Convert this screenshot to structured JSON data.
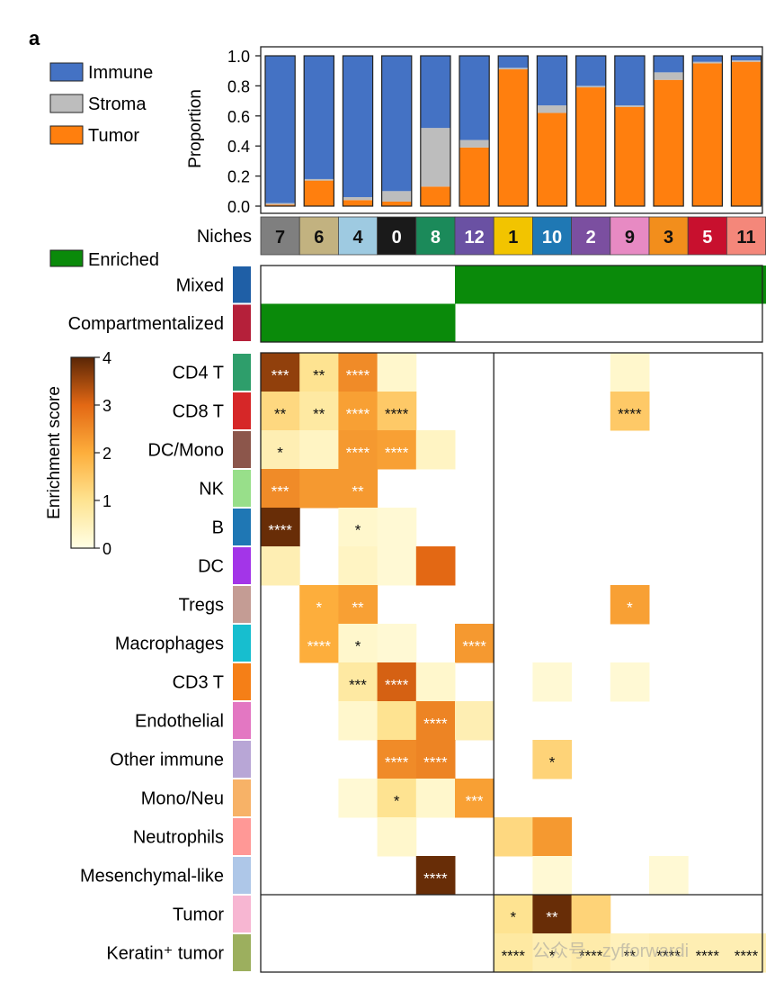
{
  "panel_label": "a",
  "chart_data": [
    {
      "type": "bar",
      "stacked": true,
      "ylabel": "Proportion",
      "ylim": [
        0,
        1
      ],
      "yticks": [
        "0.0",
        "0.2",
        "0.4",
        "0.6",
        "0.8",
        "1.0"
      ],
      "legend": {
        "placement": "top-left",
        "entries": [
          "Immune",
          "Stroma",
          "Tumor"
        ]
      },
      "categories": [
        "7",
        "6",
        "4",
        "0",
        "8",
        "12",
        "1",
        "10",
        "2",
        "9",
        "3",
        "5",
        "11"
      ],
      "series": [
        {
          "name": "Tumor",
          "color": "#ff7f0e",
          "values": [
            0.01,
            0.17,
            0.04,
            0.03,
            0.13,
            0.39,
            0.91,
            0.62,
            0.79,
            0.66,
            0.84,
            0.95,
            0.96
          ]
        },
        {
          "name": "Stroma",
          "color": "#bdbdbd",
          "values": [
            0.01,
            0.01,
            0.02,
            0.07,
            0.39,
            0.05,
            0.01,
            0.05,
            0.01,
            0.01,
            0.05,
            0.01,
            0.01
          ]
        },
        {
          "name": "Immune",
          "color": "#4472c4",
          "values": [
            0.98,
            0.82,
            0.94,
            0.9,
            0.48,
            0.56,
            0.08,
            0.33,
            0.2,
            0.33,
            0.11,
            0.04,
            0.03
          ]
        }
      ]
    },
    {
      "type": "heatmap",
      "x_label": "Niches",
      "niches": [
        "7",
        "6",
        "4",
        "0",
        "8",
        "12",
        "1",
        "10",
        "2",
        "9",
        "3",
        "5",
        "11"
      ],
      "niche_colors": [
        "#7f7f7f",
        "#c2b280",
        "#9ecae1",
        "#1a1a1a",
        "#1b8a5a",
        "#6a51a3",
        "#f2c400",
        "#1f78b4",
        "#7b4fa0",
        "#e78ac3",
        "#f28e1c",
        "#c8102e",
        "#f4877a"
      ],
      "niche_label_colors": [
        "#111111",
        "#111111",
        "#111111",
        "#ffffff",
        "#ffffff",
        "#ffffff",
        "#111111",
        "#ffffff",
        "#ffffff",
        "#111111",
        "#111111",
        "#ffffff",
        "#111111"
      ],
      "enriched_legend": {
        "label": "Enriched",
        "color": "#0a8a0a"
      },
      "groups": [
        {
          "name": "Mixed",
          "color": "#1f5fa6",
          "enriched": [
            0,
            0,
            0,
            0,
            0,
            1,
            1,
            1,
            1,
            1,
            1,
            1,
            1
          ]
        },
        {
          "name": "Compartmentalized",
          "color": "#b5203a",
          "enriched": [
            1,
            1,
            1,
            1,
            1,
            0,
            0,
            0,
            0,
            0,
            0,
            0,
            0
          ]
        }
      ],
      "colorbar": {
        "label": "Enrichment score",
        "min": 0,
        "max": 4,
        "ticks": [
          "0",
          "1",
          "2",
          "3",
          "4"
        ]
      },
      "rows": [
        {
          "label": "CD4 T",
          "color": "#2e9e6b",
          "scores": [
            3.6,
            1.0,
            2.5,
            0.3,
            0,
            0,
            0,
            0,
            0,
            0.3,
            0,
            0,
            0
          ],
          "stars": [
            "***",
            "**",
            "****",
            "",
            "",
            "",
            "",
            "",
            "",
            "",
            "",
            "",
            ""
          ]
        },
        {
          "label": "CD8 T",
          "color": "#d62728",
          "scores": [
            1.2,
            0.8,
            2.2,
            1.5,
            0,
            0,
            0,
            0,
            0,
            1.5,
            0,
            0,
            0
          ],
          "stars": [
            "**",
            "**",
            "****",
            "****",
            "",
            "",
            "",
            "",
            "",
            "****",
            "",
            "",
            ""
          ]
        },
        {
          "label": "DC/Mono",
          "color": "#8c564b",
          "scores": [
            0.6,
            0.4,
            2.3,
            2.2,
            0.4,
            0,
            0,
            0,
            0,
            0,
            0,
            0,
            0
          ],
          "stars": [
            "*",
            "",
            "****",
            "****",
            "",
            "",
            "",
            "",
            "",
            "",
            "",
            "",
            ""
          ]
        },
        {
          "label": "NK",
          "color": "#98df8a",
          "scores": [
            2.5,
            2.3,
            2.3,
            0,
            0,
            0,
            0,
            0,
            0,
            0,
            0,
            0,
            0
          ],
          "stars": [
            "***",
            "",
            "**",
            "",
            "",
            "",
            "",
            "",
            "",
            "",
            "",
            "",
            ""
          ]
        },
        {
          "label": "B",
          "color": "#1f77b4",
          "scores": [
            3.9,
            0,
            0.3,
            0.2,
            0,
            0,
            0,
            0,
            0,
            0,
            0,
            0,
            0
          ],
          "stars": [
            "****",
            "",
            "*",
            "",
            "",
            "",
            "",
            "",
            "",
            "",
            "",
            "",
            ""
          ]
        },
        {
          "label": "DC",
          "color": "#a335e8",
          "scores": [
            0.6,
            0,
            0.4,
            0.2,
            3.0,
            0,
            0,
            0,
            0,
            0,
            0,
            0,
            0
          ],
          "stars": [
            "",
            "",
            "",
            "",
            "",
            "",
            "",
            "",
            "",
            "",
            "",
            "",
            ""
          ]
        },
        {
          "label": "Tregs",
          "color": "#c49c94",
          "scores": [
            0,
            2.0,
            2.2,
            0,
            0,
            0,
            0,
            0,
            0,
            2.2,
            0,
            0,
            0
          ],
          "stars": [
            "",
            "*",
            "**",
            "",
            "",
            "",
            "",
            "",
            "",
            "*",
            "",
            "",
            ""
          ]
        },
        {
          "label": "Macrophages",
          "color": "#17becf",
          "scores": [
            0,
            2.0,
            0.3,
            0.2,
            0,
            2.3,
            0,
            0,
            0,
            0,
            0,
            0,
            0
          ],
          "stars": [
            "",
            "****",
            "*",
            "",
            "",
            "****",
            "",
            "",
            "",
            "",
            "",
            "",
            ""
          ]
        },
        {
          "label": "CD3 T",
          "color": "#f57f17",
          "scores": [
            0,
            0,
            0.8,
            3.1,
            0.3,
            0,
            0,
            0.2,
            0,
            0.2,
            0,
            0,
            0
          ],
          "stars": [
            "",
            "",
            "***",
            "****",
            "",
            "",
            "",
            "",
            "",
            "",
            "",
            "",
            ""
          ]
        },
        {
          "label": "Endothelial",
          "color": "#e377c2",
          "scores": [
            0,
            0,
            0.3,
            1.0,
            2.6,
            0.6,
            0,
            0,
            0,
            0,
            0,
            0,
            0
          ],
          "stars": [
            "",
            "",
            "",
            "",
            "****",
            "",
            "",
            "",
            "",
            "",
            "",
            "",
            ""
          ]
        },
        {
          "label": "Other immune",
          "color": "#b8a6d6",
          "scores": [
            0,
            0,
            0,
            2.5,
            2.6,
            0,
            0,
            1.3,
            0,
            0,
            0,
            0,
            0
          ],
          "stars": [
            "",
            "",
            "",
            "****",
            "****",
            "",
            "",
            "*",
            "",
            "",
            "",
            "",
            ""
          ]
        },
        {
          "label": "Mono/Neu",
          "color": "#f7b267",
          "scores": [
            0,
            0,
            0.2,
            1.0,
            0.3,
            2.2,
            0,
            0,
            0,
            0,
            0,
            0,
            0
          ],
          "stars": [
            "",
            "",
            "",
            "*",
            "",
            "***",
            "",
            "",
            "",
            "",
            "",
            "",
            ""
          ]
        },
        {
          "label": "Neutrophils",
          "color": "#ff9896",
          "scores": [
            0,
            0,
            0,
            0.3,
            0,
            0,
            1.2,
            2.3,
            0,
            0,
            0,
            0,
            0
          ],
          "stars": [
            "",
            "",
            "",
            "",
            "",
            "",
            "",
            "",
            "",
            "",
            "",
            "",
            ""
          ]
        },
        {
          "label": "Mesenchymal-like",
          "color": "#aec7e8",
          "scores": [
            0,
            0,
            0,
            0,
            3.9,
            0,
            0,
            0.2,
            0,
            0,
            0.2,
            0,
            0
          ],
          "stars": [
            "",
            "",
            "",
            "",
            "****",
            "",
            "",
            "",
            "",
            "",
            "",
            "",
            ""
          ]
        },
        {
          "label": "Tumor",
          "color": "#f7b6d2",
          "scores": [
            0,
            0,
            0,
            0,
            0,
            0,
            1.0,
            3.9,
            1.3,
            0,
            0,
            0,
            0
          ],
          "stars": [
            "",
            "",
            "",
            "",
            "",
            "",
            "*",
            "**",
            "",
            "",
            "",
            "",
            ""
          ]
        },
        {
          "label": "Keratin⁺ tumor",
          "color": "#9caf5e",
          "scores": [
            0,
            0,
            0,
            0,
            0,
            0,
            0.8,
            0.6,
            0.7,
            0.5,
            0.6,
            0.6,
            0.6
          ],
          "stars": [
            "",
            "",
            "",
            "",
            "",
            "",
            "****",
            "*",
            "****",
            "**",
            "****",
            "****",
            "****"
          ]
        }
      ],
      "watermark": "公众号 · zyfforwardi"
    }
  ]
}
